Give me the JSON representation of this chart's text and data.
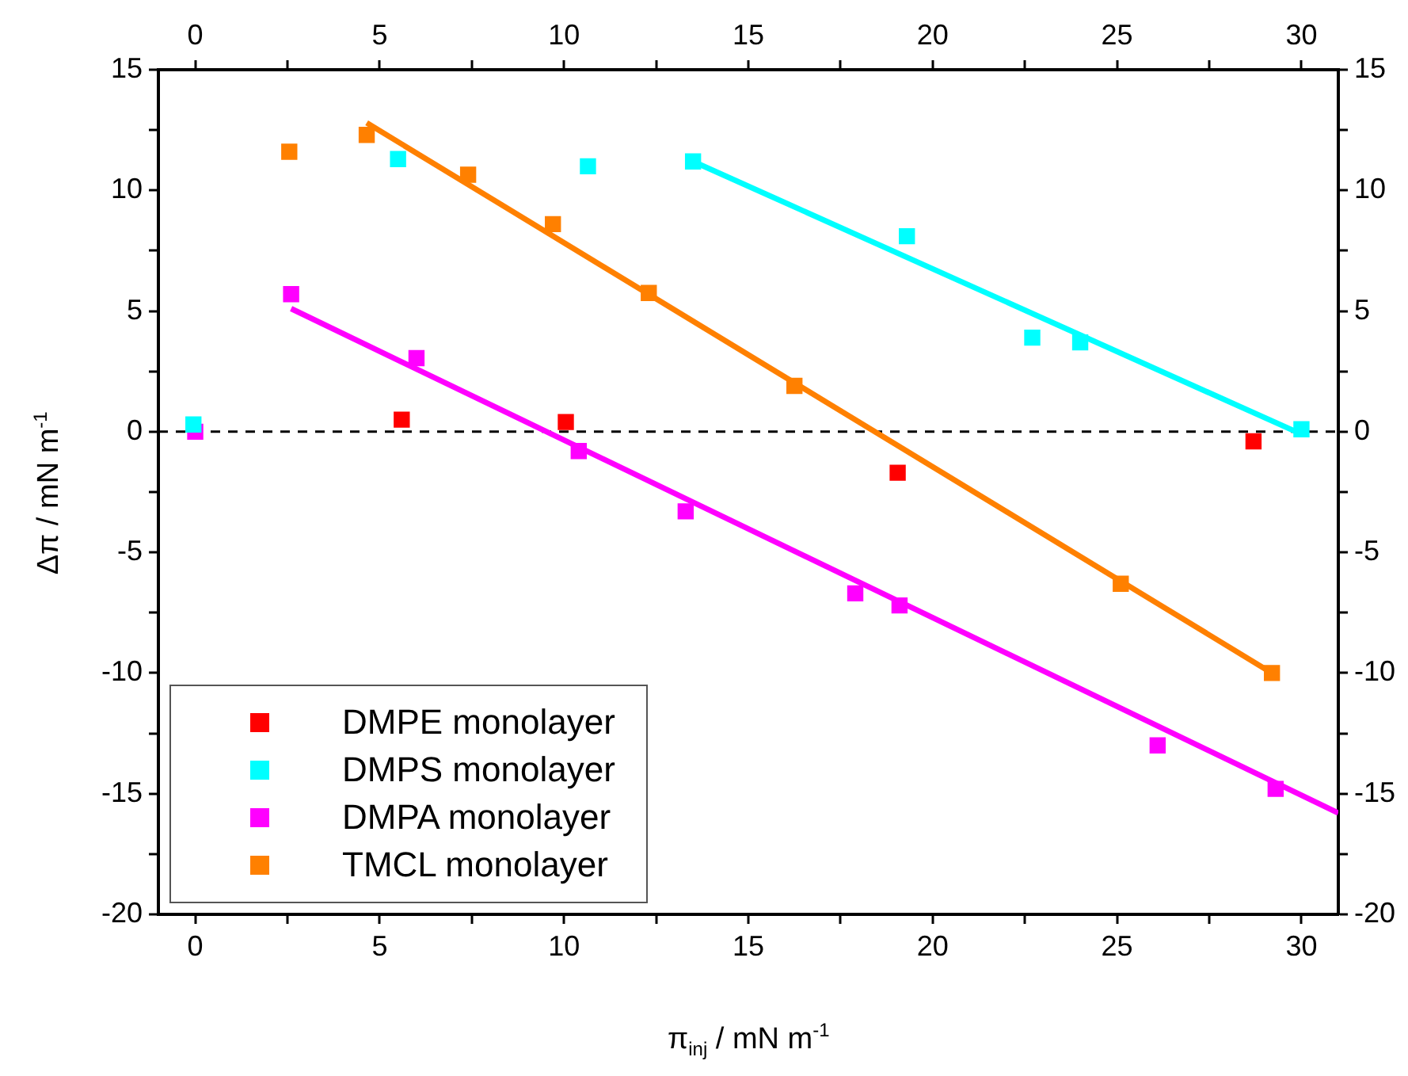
{
  "chart_data": {
    "type": "scatter",
    "xlabel": "π$_{inj}$ / mN m$^{-1}$",
    "ylabel": "Δπ / mN m$^{-1}$",
    "xlim": [
      -1,
      31
    ],
    "xticks": [
      0,
      {
        "value": 2.5,
        "label": null
      },
      5,
      {
        "value": 7.5,
        "label": null
      },
      10,
      {
        "value": 12.5,
        "label": null
      },
      15,
      {
        "value": 17.5,
        "label": null
      },
      20,
      {
        "value": 22.5,
        "label": null
      },
      25,
      {
        "value": 27.5,
        "label": null
      },
      30
    ],
    "x2lim": [
      -1,
      31
    ],
    "x2ticks": [
      0,
      {
        "value": 2.5,
        "label": null
      },
      5,
      {
        "value": 7.5,
        "label": null
      },
      10,
      {
        "value": 12.5,
        "label": null
      },
      15,
      {
        "value": 17.5,
        "label": null
      },
      20,
      {
        "value": 22.5,
        "label": null
      },
      25,
      {
        "value": 27.5,
        "label": null
      },
      30
    ],
    "ylim": [
      -20,
      15
    ],
    "yticks": [
      -20,
      {
        "value": -17.5,
        "label": null
      },
      -15,
      {
        "value": -12.5,
        "label": null
      },
      -10,
      {
        "value": -7.5,
        "label": null
      },
      -5,
      {
        "value": -2.5,
        "label": null
      },
      0,
      {
        "value": 2.5,
        "label": null
      },
      5,
      {
        "value": 7.5,
        "label": null
      },
      10,
      {
        "value": 12.5,
        "label": null
      },
      15
    ],
    "y2lim": [
      -20,
      15
    ],
    "y2ticks": [
      -20,
      {
        "value": -17.5,
        "label": null
      },
      -15,
      {
        "value": -12.5,
        "label": null
      },
      -10,
      {
        "value": -7.5,
        "label": null
      },
      -5,
      {
        "value": -2.5,
        "label": null
      },
      0,
      {
        "value": 2.5,
        "label": null
      },
      5,
      {
        "value": 7.5,
        "label": null
      },
      10,
      {
        "value": 12.5,
        "label": null
      },
      15
    ],
    "grid": false,
    "legend": "bottom left",
    "marker": "square",
    "ref_lines": [
      {
        "axis": "y",
        "value": 0,
        "line_style": "dashed",
        "color": "#000000"
      }
    ],
    "series": [
      {
        "name": "DMPE monolayer",
        "color": "#ff0000",
        "x": [
          5.6,
          10.05,
          19.05,
          28.7
        ],
        "values": [
          0.5,
          0.4,
          -1.7,
          -0.4
        ]
      },
      {
        "name": "DMPS monolayer",
        "color": "#00ffff",
        "x": [
          -0.05,
          5.5,
          10.65,
          13.5,
          19.3,
          22.7,
          24.0,
          30.0
        ],
        "values": [
          0.3,
          11.3,
          11.0,
          11.2,
          8.1,
          3.9,
          3.7,
          0.1
        ]
      },
      {
        "name": "DMPA monolayer",
        "color": "#ff00ff",
        "x": [
          0,
          2.6,
          6.0,
          10.4,
          13.3,
          17.9,
          19.1,
          26.1,
          29.3
        ],
        "values": [
          0,
          5.7,
          3.05,
          -0.8,
          -3.3,
          -6.7,
          -7.2,
          -13.0,
          -14.8
        ]
      },
      {
        "name": "TMCL monolayer",
        "color": "#ff8000",
        "x": [
          2.55,
          4.65,
          7.4,
          9.7,
          12.3,
          16.25,
          25.1,
          29.2
        ],
        "values": [
          11.6,
          12.3,
          10.65,
          8.6,
          5.75,
          1.9,
          -6.3,
          -10.0
        ]
      },
      {
        "type": "line",
        "color": "#00ffff",
        "marker": "none",
        "x": [
          13.5,
          30.0
        ],
        "values": [
          11.2,
          -0.1
        ]
      },
      {
        "type": "line",
        "color": "#ff00ff",
        "marker": "none",
        "x": [
          2.6,
          31
        ],
        "values": [
          5.1,
          -15.8
        ]
      },
      {
        "type": "line",
        "color": "#ff8000",
        "marker": "none",
        "x": [
          4.65,
          29.2
        ],
        "values": [
          12.8,
          -10.0
        ]
      }
    ]
  }
}
